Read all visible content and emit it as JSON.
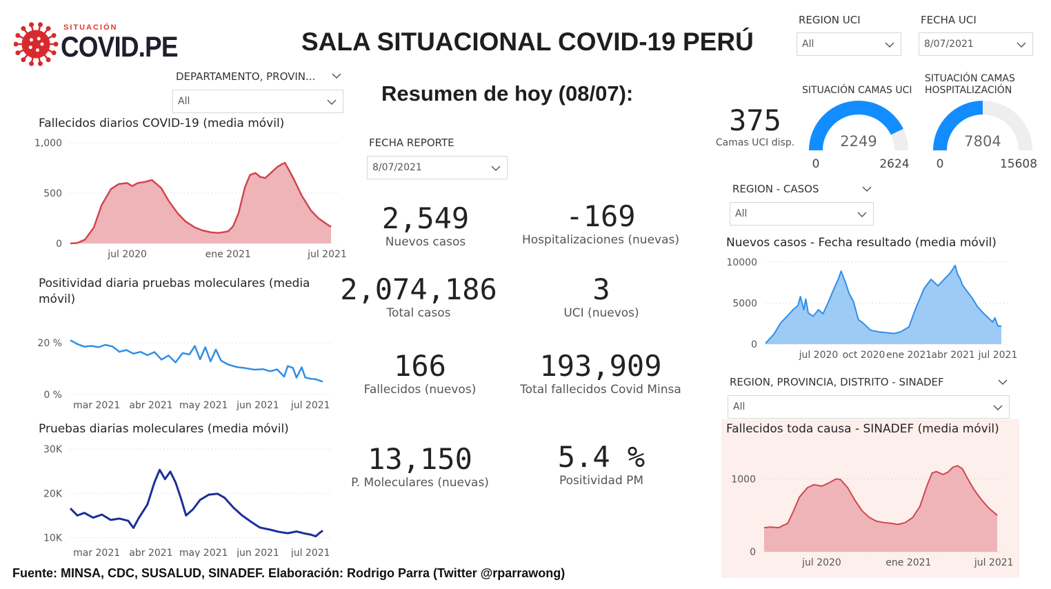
{
  "logo": {
    "small_text": "SITUACIÓN",
    "big_text": "COVID.PE"
  },
  "title": "SALA SITUACIONAL COVID-19 PERÚ",
  "summary_title": "Resumen de hoy (08/07):",
  "slicers": {
    "department": {
      "label": "DEPARTAMENTO, PROVIN...",
      "value": "All"
    },
    "region_uci": {
      "label": "REGION UCI",
      "value": "All"
    },
    "fecha_uci": {
      "label": "FECHA UCI",
      "value": "8/07/2021"
    },
    "fecha_reporte": {
      "label": "FECHA REPORTE",
      "value": "8/07/2021"
    },
    "region_casos": {
      "label": "REGION - CASOS",
      "value": "All"
    },
    "region_sinadef": {
      "label": "REGION, PROVINCIA, DISTRITO - SINADEF",
      "value": "All"
    }
  },
  "kpis": [
    {
      "value": "2,549",
      "label": "Nuevos casos"
    },
    {
      "value": "-169",
      "label": "Hospitalizaciones (nuevas)"
    },
    {
      "value": "2,074,186",
      "label": "Total casos"
    },
    {
      "value": "3",
      "label": "UCI (nuevos)"
    },
    {
      "value": "166",
      "label": "Fallecidos  (nuevos)"
    },
    {
      "value": "193,909",
      "label": "Total fallecidos Covid Minsa"
    },
    {
      "value": "13,150",
      "label": "P. Moleculares (nuevas)"
    },
    {
      "value": "5.4 %",
      "label": "Positividad PM"
    }
  ],
  "uci_card": {
    "value": "375",
    "label": "Camas UCI disp."
  },
  "gauges": [
    {
      "title": "SITUACIÓN CAMAS UCI",
      "value": 2249,
      "min": 0,
      "max": 2624,
      "value_label": "2249",
      "min_label": "0",
      "max_label": "2624"
    },
    {
      "title": "SITUACIÓN CAMAS HOSPITALIZACIÓN",
      "value": 7804,
      "min": 0,
      "max": 15608,
      "value_label": "7804",
      "min_label": "0",
      "max_label": "15608"
    }
  ],
  "colors": {
    "red_line": "#d0464f",
    "red_fill": "#efb4b8",
    "blue_line": "#2e8ee8",
    "blue_fill": "#9dcbf5",
    "navy_line": "#1b2f96",
    "gauge_fill": "#118dff",
    "gauge_track": "#eeeeee",
    "sinadef_bg": "#fcefec"
  },
  "footer": "Fuente: MINSA, CDC, SUSALUD, SINADEF. Elaboración: Rodrigo Parra (Twitter @rparrawong)",
  "chart_data": [
    {
      "id": "deaths",
      "type": "area",
      "title": "Fallecidos diarios COVID-19 (media móvil)",
      "x_start": "2020-03-19",
      "x_end": "2021-07-08",
      "y_ticks": [
        "0",
        "500",
        "1,000"
      ],
      "ylim": [
        0,
        1000
      ],
      "x_ticks": [
        {
          "label": "jul 2020",
          "date": "2020-07-01"
        },
        {
          "label": "ene 2021",
          "date": "2021-01-01"
        },
        {
          "label": "jul 2021",
          "date": "2021-07-01"
        }
      ],
      "points": [
        [
          "2020-03-19",
          0
        ],
        [
          "2020-04-01",
          5
        ],
        [
          "2020-04-15",
          40
        ],
        [
          "2020-05-01",
          160
        ],
        [
          "2020-05-15",
          380
        ],
        [
          "2020-06-01",
          540
        ],
        [
          "2020-06-15",
          590
        ],
        [
          "2020-07-01",
          600
        ],
        [
          "2020-07-10",
          570
        ],
        [
          "2020-07-20",
          600
        ],
        [
          "2020-08-01",
          610
        ],
        [
          "2020-08-15",
          630
        ],
        [
          "2020-09-01",
          550
        ],
        [
          "2020-09-15",
          420
        ],
        [
          "2020-10-01",
          300
        ],
        [
          "2020-10-15",
          220
        ],
        [
          "2020-11-01",
          160
        ],
        [
          "2020-11-15",
          130
        ],
        [
          "2020-12-01",
          110
        ],
        [
          "2020-12-15",
          105
        ],
        [
          "2021-01-01",
          120
        ],
        [
          "2021-01-10",
          170
        ],
        [
          "2021-01-20",
          300
        ],
        [
          "2021-02-01",
          560
        ],
        [
          "2021-02-10",
          680
        ],
        [
          "2021-02-20",
          700
        ],
        [
          "2021-03-01",
          660
        ],
        [
          "2021-03-10",
          650
        ],
        [
          "2021-03-20",
          700
        ],
        [
          "2021-04-01",
          760
        ],
        [
          "2021-04-10",
          790
        ],
        [
          "2021-04-15",
          800
        ],
        [
          "2021-04-20",
          750
        ],
        [
          "2021-05-01",
          640
        ],
        [
          "2021-05-15",
          480
        ],
        [
          "2021-06-01",
          330
        ],
        [
          "2021-06-15",
          250
        ],
        [
          "2021-07-01",
          190
        ],
        [
          "2021-07-08",
          165
        ]
      ]
    },
    {
      "id": "positivity",
      "type": "line",
      "title": "Positividad diaria pruebas moleculares (media móvil)",
      "x_start": "2021-02-14",
      "x_end": "2021-07-08",
      "y_ticks": [
        "0 %",
        "20 %"
      ],
      "ylim": [
        0,
        20
      ],
      "x_ticks": [
        {
          "label": "mar 2021",
          "date": "2021-03-01"
        },
        {
          "label": "abr 2021",
          "date": "2021-04-01"
        },
        {
          "label": "may 2021",
          "date": "2021-05-01"
        },
        {
          "label": "jun 2021",
          "date": "2021-06-01"
        },
        {
          "label": "jul 2021",
          "date": "2021-07-01"
        }
      ],
      "points": [
        [
          "2021-02-14",
          21
        ],
        [
          "2021-02-18",
          19.5
        ],
        [
          "2021-02-22",
          18.5
        ],
        [
          "2021-02-26",
          18.8
        ],
        [
          "2021-03-02",
          18.3
        ],
        [
          "2021-03-06",
          19.2
        ],
        [
          "2021-03-10",
          18.6
        ],
        [
          "2021-03-14",
          16.5
        ],
        [
          "2021-03-18",
          17.2
        ],
        [
          "2021-03-22",
          15.8
        ],
        [
          "2021-03-26",
          16.5
        ],
        [
          "2021-03-30",
          15.2
        ],
        [
          "2021-04-03",
          16.4
        ],
        [
          "2021-04-07",
          13.5
        ],
        [
          "2021-04-11",
          15.1
        ],
        [
          "2021-04-15",
          12.4
        ],
        [
          "2021-04-19",
          16.0
        ],
        [
          "2021-04-23",
          15.5
        ],
        [
          "2021-04-26",
          18.8
        ],
        [
          "2021-04-29",
          13.6
        ],
        [
          "2021-05-02",
          18.3
        ],
        [
          "2021-05-05",
          12.8
        ],
        [
          "2021-05-08",
          17.4
        ],
        [
          "2021-05-11",
          13.1
        ],
        [
          "2021-05-15",
          11.6
        ],
        [
          "2021-05-20",
          10.6
        ],
        [
          "2021-05-25",
          10.2
        ],
        [
          "2021-05-30",
          9.6
        ],
        [
          "2021-06-04",
          9.8
        ],
        [
          "2021-06-08",
          9.0
        ],
        [
          "2021-06-12",
          9.7
        ],
        [
          "2021-06-16",
          6.9
        ],
        [
          "2021-06-18",
          11.0
        ],
        [
          "2021-06-21",
          10.3
        ],
        [
          "2021-06-23",
          6.5
        ],
        [
          "2021-06-26",
          10.5
        ],
        [
          "2021-06-28",
          6.6
        ],
        [
          "2021-07-01",
          6.1
        ],
        [
          "2021-07-04",
          5.9
        ],
        [
          "2021-07-08",
          5.0
        ]
      ]
    },
    {
      "id": "tests",
      "type": "line",
      "title": "Pruebas diarias moleculares (media móvil)",
      "x_start": "2021-02-14",
      "x_end": "2021-07-08",
      "y_ticks": [
        "10K",
        "20K",
        "30K"
      ],
      "ylim": [
        9000,
        30000
      ],
      "y_tick_values": [
        10000,
        20000,
        30000
      ],
      "x_ticks": [
        {
          "label": "mar 2021",
          "date": "2021-03-01"
        },
        {
          "label": "abr 2021",
          "date": "2021-04-01"
        },
        {
          "label": "may 2021",
          "date": "2021-05-01"
        },
        {
          "label": "jun 2021",
          "date": "2021-06-01"
        },
        {
          "label": "jul 2021",
          "date": "2021-07-01"
        }
      ],
      "points": [
        [
          "2021-02-14",
          16600
        ],
        [
          "2021-02-18",
          15000
        ],
        [
          "2021-02-22",
          15600
        ],
        [
          "2021-02-27",
          14500
        ],
        [
          "2021-03-04",
          15200
        ],
        [
          "2021-03-09",
          14000
        ],
        [
          "2021-03-14",
          14300
        ],
        [
          "2021-03-19",
          13800
        ],
        [
          "2021-03-22",
          12200
        ],
        [
          "2021-03-25",
          14400
        ],
        [
          "2021-03-30",
          17500
        ],
        [
          "2021-04-03",
          22500
        ],
        [
          "2021-04-06",
          25300
        ],
        [
          "2021-04-09",
          23200
        ],
        [
          "2021-04-12",
          24900
        ],
        [
          "2021-04-15",
          22500
        ],
        [
          "2021-04-18",
          19000
        ],
        [
          "2021-04-21",
          15000
        ],
        [
          "2021-04-25",
          16400
        ],
        [
          "2021-04-29",
          18500
        ],
        [
          "2021-05-04",
          19700
        ],
        [
          "2021-05-09",
          19900
        ],
        [
          "2021-05-13",
          19000
        ],
        [
          "2021-05-18",
          16800
        ],
        [
          "2021-05-23",
          15000
        ],
        [
          "2021-05-28",
          13600
        ],
        [
          "2021-06-02",
          12300
        ],
        [
          "2021-06-08",
          11800
        ],
        [
          "2021-06-13",
          11300
        ],
        [
          "2021-06-18",
          11000
        ],
        [
          "2021-06-23",
          11400
        ],
        [
          "2021-06-27",
          11000
        ],
        [
          "2021-07-01",
          10700
        ],
        [
          "2021-07-04",
          10300
        ],
        [
          "2021-07-06",
          11000
        ],
        [
          "2021-07-08",
          11600
        ]
      ]
    },
    {
      "id": "cases",
      "type": "area",
      "title": "Nuevos casos - Fecha resultado (media móvil)",
      "x_start": "2020-03-15",
      "x_end": "2021-07-08",
      "y_ticks": [
        "0",
        "5000",
        "10000"
      ],
      "ylim": [
        0,
        10000
      ],
      "x_ticks": [
        {
          "label": "jul 2020",
          "date": "2020-07-01"
        },
        {
          "label": "oct 2020",
          "date": "2020-10-01"
        },
        {
          "label": "ene 2021",
          "date": "2021-01-01"
        },
        {
          "label": "abr 2021",
          "date": "2021-04-01"
        },
        {
          "label": "jul 2021",
          "date": "2021-07-01"
        }
      ],
      "points": [
        [
          "2020-03-15",
          100
        ],
        [
          "2020-04-01",
          1200
        ],
        [
          "2020-04-15",
          2600
        ],
        [
          "2020-05-01",
          3600
        ],
        [
          "2020-05-10",
          4200
        ],
        [
          "2020-05-20",
          4700
        ],
        [
          "2020-05-25",
          5800
        ],
        [
          "2020-06-01",
          4200
        ],
        [
          "2020-06-05",
          5500
        ],
        [
          "2020-06-10",
          3800
        ],
        [
          "2020-06-20",
          3400
        ],
        [
          "2020-07-01",
          4200
        ],
        [
          "2020-07-10",
          3700
        ],
        [
          "2020-07-20",
          5000
        ],
        [
          "2020-08-01",
          6700
        ],
        [
          "2020-08-10",
          7900
        ],
        [
          "2020-08-16",
          8900
        ],
        [
          "2020-08-25",
          7500
        ],
        [
          "2020-09-01",
          6200
        ],
        [
          "2020-09-10",
          5200
        ],
        [
          "2020-09-20",
          3000
        ],
        [
          "2020-10-01",
          2500
        ],
        [
          "2020-10-15",
          1700
        ],
        [
          "2020-11-01",
          1500
        ],
        [
          "2020-11-15",
          1400
        ],
        [
          "2020-12-01",
          1300
        ],
        [
          "2020-12-15",
          1500
        ],
        [
          "2021-01-01",
          2100
        ],
        [
          "2021-01-15",
          4400
        ],
        [
          "2021-02-01",
          6800
        ],
        [
          "2021-02-15",
          7900
        ],
        [
          "2021-03-01",
          7100
        ],
        [
          "2021-03-15",
          8000
        ],
        [
          "2021-03-25",
          8600
        ],
        [
          "2021-04-01",
          9200
        ],
        [
          "2021-04-05",
          9600
        ],
        [
          "2021-04-10",
          8500
        ],
        [
          "2021-04-15",
          8000
        ],
        [
          "2021-04-20",
          7200
        ],
        [
          "2021-05-01",
          6300
        ],
        [
          "2021-05-10",
          5600
        ],
        [
          "2021-05-20",
          4600
        ],
        [
          "2021-06-01",
          3800
        ],
        [
          "2021-06-10",
          3300
        ],
        [
          "2021-06-20",
          2700
        ],
        [
          "2021-06-25",
          3200
        ],
        [
          "2021-07-01",
          2200
        ],
        [
          "2021-07-08",
          2200
        ]
      ]
    },
    {
      "id": "sinadef",
      "type": "area",
      "title": "Fallecidos toda causa - SINADEF (media móvil)",
      "x_start": "2020-03-01",
      "x_end": "2021-07-08",
      "y_ticks": [
        "0",
        "1000"
      ],
      "ylim": [
        0,
        1400
      ],
      "y_tick_values": [
        0,
        1000
      ],
      "x_ticks": [
        {
          "label": "jul 2020",
          "date": "2020-07-01"
        },
        {
          "label": "ene 2021",
          "date": "2021-01-01"
        },
        {
          "label": "jul 2021",
          "date": "2021-07-01"
        }
      ],
      "points": [
        [
          "2020-03-01",
          330
        ],
        [
          "2020-03-15",
          340
        ],
        [
          "2020-04-01",
          330
        ],
        [
          "2020-04-10",
          360
        ],
        [
          "2020-04-20",
          390
        ],
        [
          "2020-05-01",
          540
        ],
        [
          "2020-05-15",
          750
        ],
        [
          "2020-06-01",
          880
        ],
        [
          "2020-06-15",
          920
        ],
        [
          "2020-07-01",
          900
        ],
        [
          "2020-07-15",
          940
        ],
        [
          "2020-08-01",
          1000
        ],
        [
          "2020-08-10",
          990
        ],
        [
          "2020-08-25",
          880
        ],
        [
          "2020-09-10",
          700
        ],
        [
          "2020-09-25",
          560
        ],
        [
          "2020-10-10",
          470
        ],
        [
          "2020-10-25",
          420
        ],
        [
          "2020-11-10",
          400
        ],
        [
          "2020-11-25",
          390
        ],
        [
          "2020-12-10",
          375
        ],
        [
          "2020-12-25",
          400
        ],
        [
          "2021-01-10",
          470
        ],
        [
          "2021-01-25",
          620
        ],
        [
          "2021-02-10",
          920
        ],
        [
          "2021-02-20",
          1080
        ],
        [
          "2021-03-01",
          1100
        ],
        [
          "2021-03-15",
          1060
        ],
        [
          "2021-03-25",
          1090
        ],
        [
          "2021-04-05",
          1160
        ],
        [
          "2021-04-15",
          1180
        ],
        [
          "2021-04-25",
          1140
        ],
        [
          "2021-05-05",
          1020
        ],
        [
          "2021-05-20",
          850
        ],
        [
          "2021-06-05",
          710
        ],
        [
          "2021-06-20",
          600
        ],
        [
          "2021-07-01",
          540
        ],
        [
          "2021-07-08",
          500
        ]
      ]
    }
  ]
}
